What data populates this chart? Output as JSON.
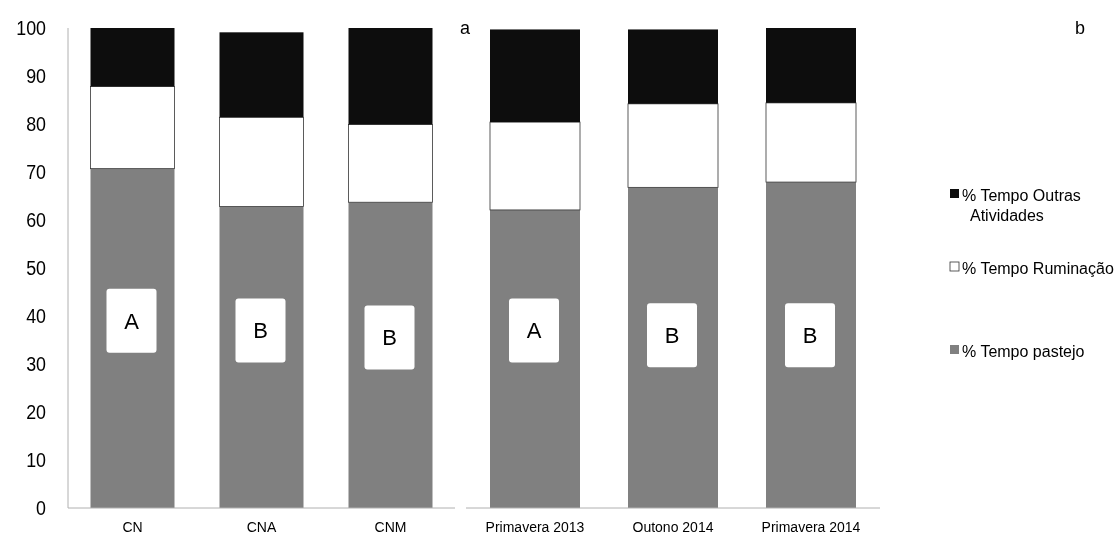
{
  "chart_data": [
    {
      "type": "bar",
      "stacked": true,
      "categories": [
        "CN",
        "CNA",
        "CNM"
      ],
      "ylim": [
        0,
        100
      ],
      "yticks": [
        0,
        10,
        20,
        30,
        40,
        50,
        60,
        70,
        80,
        90,
        100
      ],
      "series": [
        {
          "color": "#808080",
          "values": [
            70.7,
            62.8,
            63.7
          ]
        },
        {
          "color": "#ffffff",
          "values": [
            17.1,
            18.6,
            16.2
          ]
        },
        {
          "color": "#0d0d0d",
          "values": [
            12.2,
            17.7,
            20.1
          ]
        }
      ],
      "annotations": [
        "a",
        "A",
        "B",
        "B"
      ]
    },
    {
      "type": "bar",
      "stacked": true,
      "categories": [
        "Primavera 2013",
        "Outono 2014",
        "Primavera 2014"
      ],
      "ylim": [
        0,
        100
      ],
      "tick_labels": "x",
      "legend": "right",
      "series": [
        {
          "name": "% Tempo pastejo",
          "color": "#808080",
          "values": [
            62.1,
            66.8,
            67.9
          ]
        },
        {
          "name": "% Tempo Ruminação",
          "color": "#ffffff",
          "values": [
            18.3,
            17.4,
            16.5
          ]
        },
        {
          "name": "% Tempo Outras Atividades",
          "color": "#0d0d0d",
          "values": [
            19.3,
            15.5,
            15.6
          ]
        }
      ],
      "annotations": [
        "b",
        "A",
        "B",
        "B"
      ]
    }
  ]
}
